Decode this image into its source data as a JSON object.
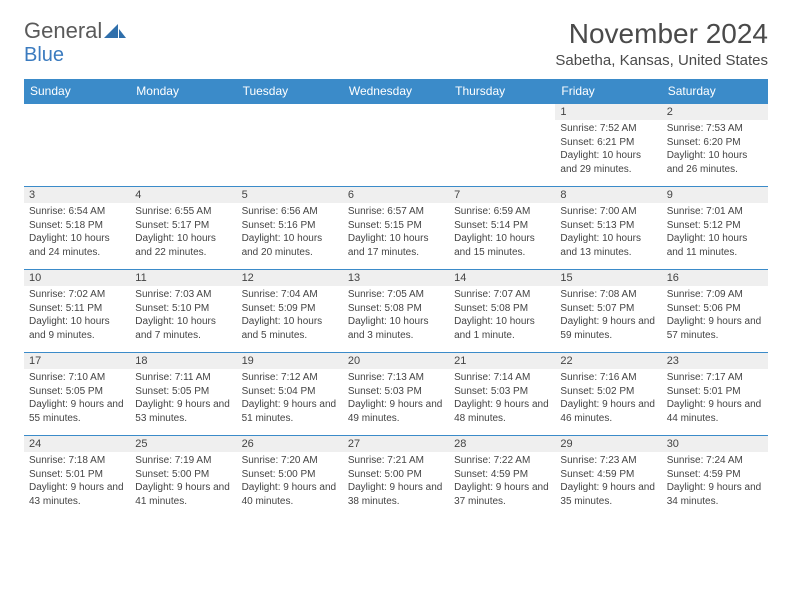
{
  "brand": {
    "word1": "General",
    "word2": "Blue",
    "icon_color": "#2f6fab"
  },
  "title": "November 2024",
  "location": "Sabetha, Kansas, United States",
  "header_bg": "#3b8bc9",
  "header_fg": "#ffffff",
  "daynum_bg": "#efefef",
  "divider": "#3b8bc9",
  "text_color": "#444444",
  "weekdays": [
    "Sunday",
    "Monday",
    "Tuesday",
    "Wednesday",
    "Thursday",
    "Friday",
    "Saturday"
  ],
  "weeks": [
    [
      null,
      null,
      null,
      null,
      null,
      {
        "n": "1",
        "sunrise": "7:52 AM",
        "sunset": "6:21 PM",
        "daylight": "10 hours and 29 minutes."
      },
      {
        "n": "2",
        "sunrise": "7:53 AM",
        "sunset": "6:20 PM",
        "daylight": "10 hours and 26 minutes."
      }
    ],
    [
      {
        "n": "3",
        "sunrise": "6:54 AM",
        "sunset": "5:18 PM",
        "daylight": "10 hours and 24 minutes."
      },
      {
        "n": "4",
        "sunrise": "6:55 AM",
        "sunset": "5:17 PM",
        "daylight": "10 hours and 22 minutes."
      },
      {
        "n": "5",
        "sunrise": "6:56 AM",
        "sunset": "5:16 PM",
        "daylight": "10 hours and 20 minutes."
      },
      {
        "n": "6",
        "sunrise": "6:57 AM",
        "sunset": "5:15 PM",
        "daylight": "10 hours and 17 minutes."
      },
      {
        "n": "7",
        "sunrise": "6:59 AM",
        "sunset": "5:14 PM",
        "daylight": "10 hours and 15 minutes."
      },
      {
        "n": "8",
        "sunrise": "7:00 AM",
        "sunset": "5:13 PM",
        "daylight": "10 hours and 13 minutes."
      },
      {
        "n": "9",
        "sunrise": "7:01 AM",
        "sunset": "5:12 PM",
        "daylight": "10 hours and 11 minutes."
      }
    ],
    [
      {
        "n": "10",
        "sunrise": "7:02 AM",
        "sunset": "5:11 PM",
        "daylight": "10 hours and 9 minutes."
      },
      {
        "n": "11",
        "sunrise": "7:03 AM",
        "sunset": "5:10 PM",
        "daylight": "10 hours and 7 minutes."
      },
      {
        "n": "12",
        "sunrise": "7:04 AM",
        "sunset": "5:09 PM",
        "daylight": "10 hours and 5 minutes."
      },
      {
        "n": "13",
        "sunrise": "7:05 AM",
        "sunset": "5:08 PM",
        "daylight": "10 hours and 3 minutes."
      },
      {
        "n": "14",
        "sunrise": "7:07 AM",
        "sunset": "5:08 PM",
        "daylight": "10 hours and 1 minute."
      },
      {
        "n": "15",
        "sunrise": "7:08 AM",
        "sunset": "5:07 PM",
        "daylight": "9 hours and 59 minutes."
      },
      {
        "n": "16",
        "sunrise": "7:09 AM",
        "sunset": "5:06 PM",
        "daylight": "9 hours and 57 minutes."
      }
    ],
    [
      {
        "n": "17",
        "sunrise": "7:10 AM",
        "sunset": "5:05 PM",
        "daylight": "9 hours and 55 minutes."
      },
      {
        "n": "18",
        "sunrise": "7:11 AM",
        "sunset": "5:05 PM",
        "daylight": "9 hours and 53 minutes."
      },
      {
        "n": "19",
        "sunrise": "7:12 AM",
        "sunset": "5:04 PM",
        "daylight": "9 hours and 51 minutes."
      },
      {
        "n": "20",
        "sunrise": "7:13 AM",
        "sunset": "5:03 PM",
        "daylight": "9 hours and 49 minutes."
      },
      {
        "n": "21",
        "sunrise": "7:14 AM",
        "sunset": "5:03 PM",
        "daylight": "9 hours and 48 minutes."
      },
      {
        "n": "22",
        "sunrise": "7:16 AM",
        "sunset": "5:02 PM",
        "daylight": "9 hours and 46 minutes."
      },
      {
        "n": "23",
        "sunrise": "7:17 AM",
        "sunset": "5:01 PM",
        "daylight": "9 hours and 44 minutes."
      }
    ],
    [
      {
        "n": "24",
        "sunrise": "7:18 AM",
        "sunset": "5:01 PM",
        "daylight": "9 hours and 43 minutes."
      },
      {
        "n": "25",
        "sunrise": "7:19 AM",
        "sunset": "5:00 PM",
        "daylight": "9 hours and 41 minutes."
      },
      {
        "n": "26",
        "sunrise": "7:20 AM",
        "sunset": "5:00 PM",
        "daylight": "9 hours and 40 minutes."
      },
      {
        "n": "27",
        "sunrise": "7:21 AM",
        "sunset": "5:00 PM",
        "daylight": "9 hours and 38 minutes."
      },
      {
        "n": "28",
        "sunrise": "7:22 AM",
        "sunset": "4:59 PM",
        "daylight": "9 hours and 37 minutes."
      },
      {
        "n": "29",
        "sunrise": "7:23 AM",
        "sunset": "4:59 PM",
        "daylight": "9 hours and 35 minutes."
      },
      {
        "n": "30",
        "sunrise": "7:24 AM",
        "sunset": "4:59 PM",
        "daylight": "9 hours and 34 minutes."
      }
    ]
  ],
  "labels": {
    "sunrise": "Sunrise: ",
    "sunset": "Sunset: ",
    "daylight": "Daylight: "
  }
}
